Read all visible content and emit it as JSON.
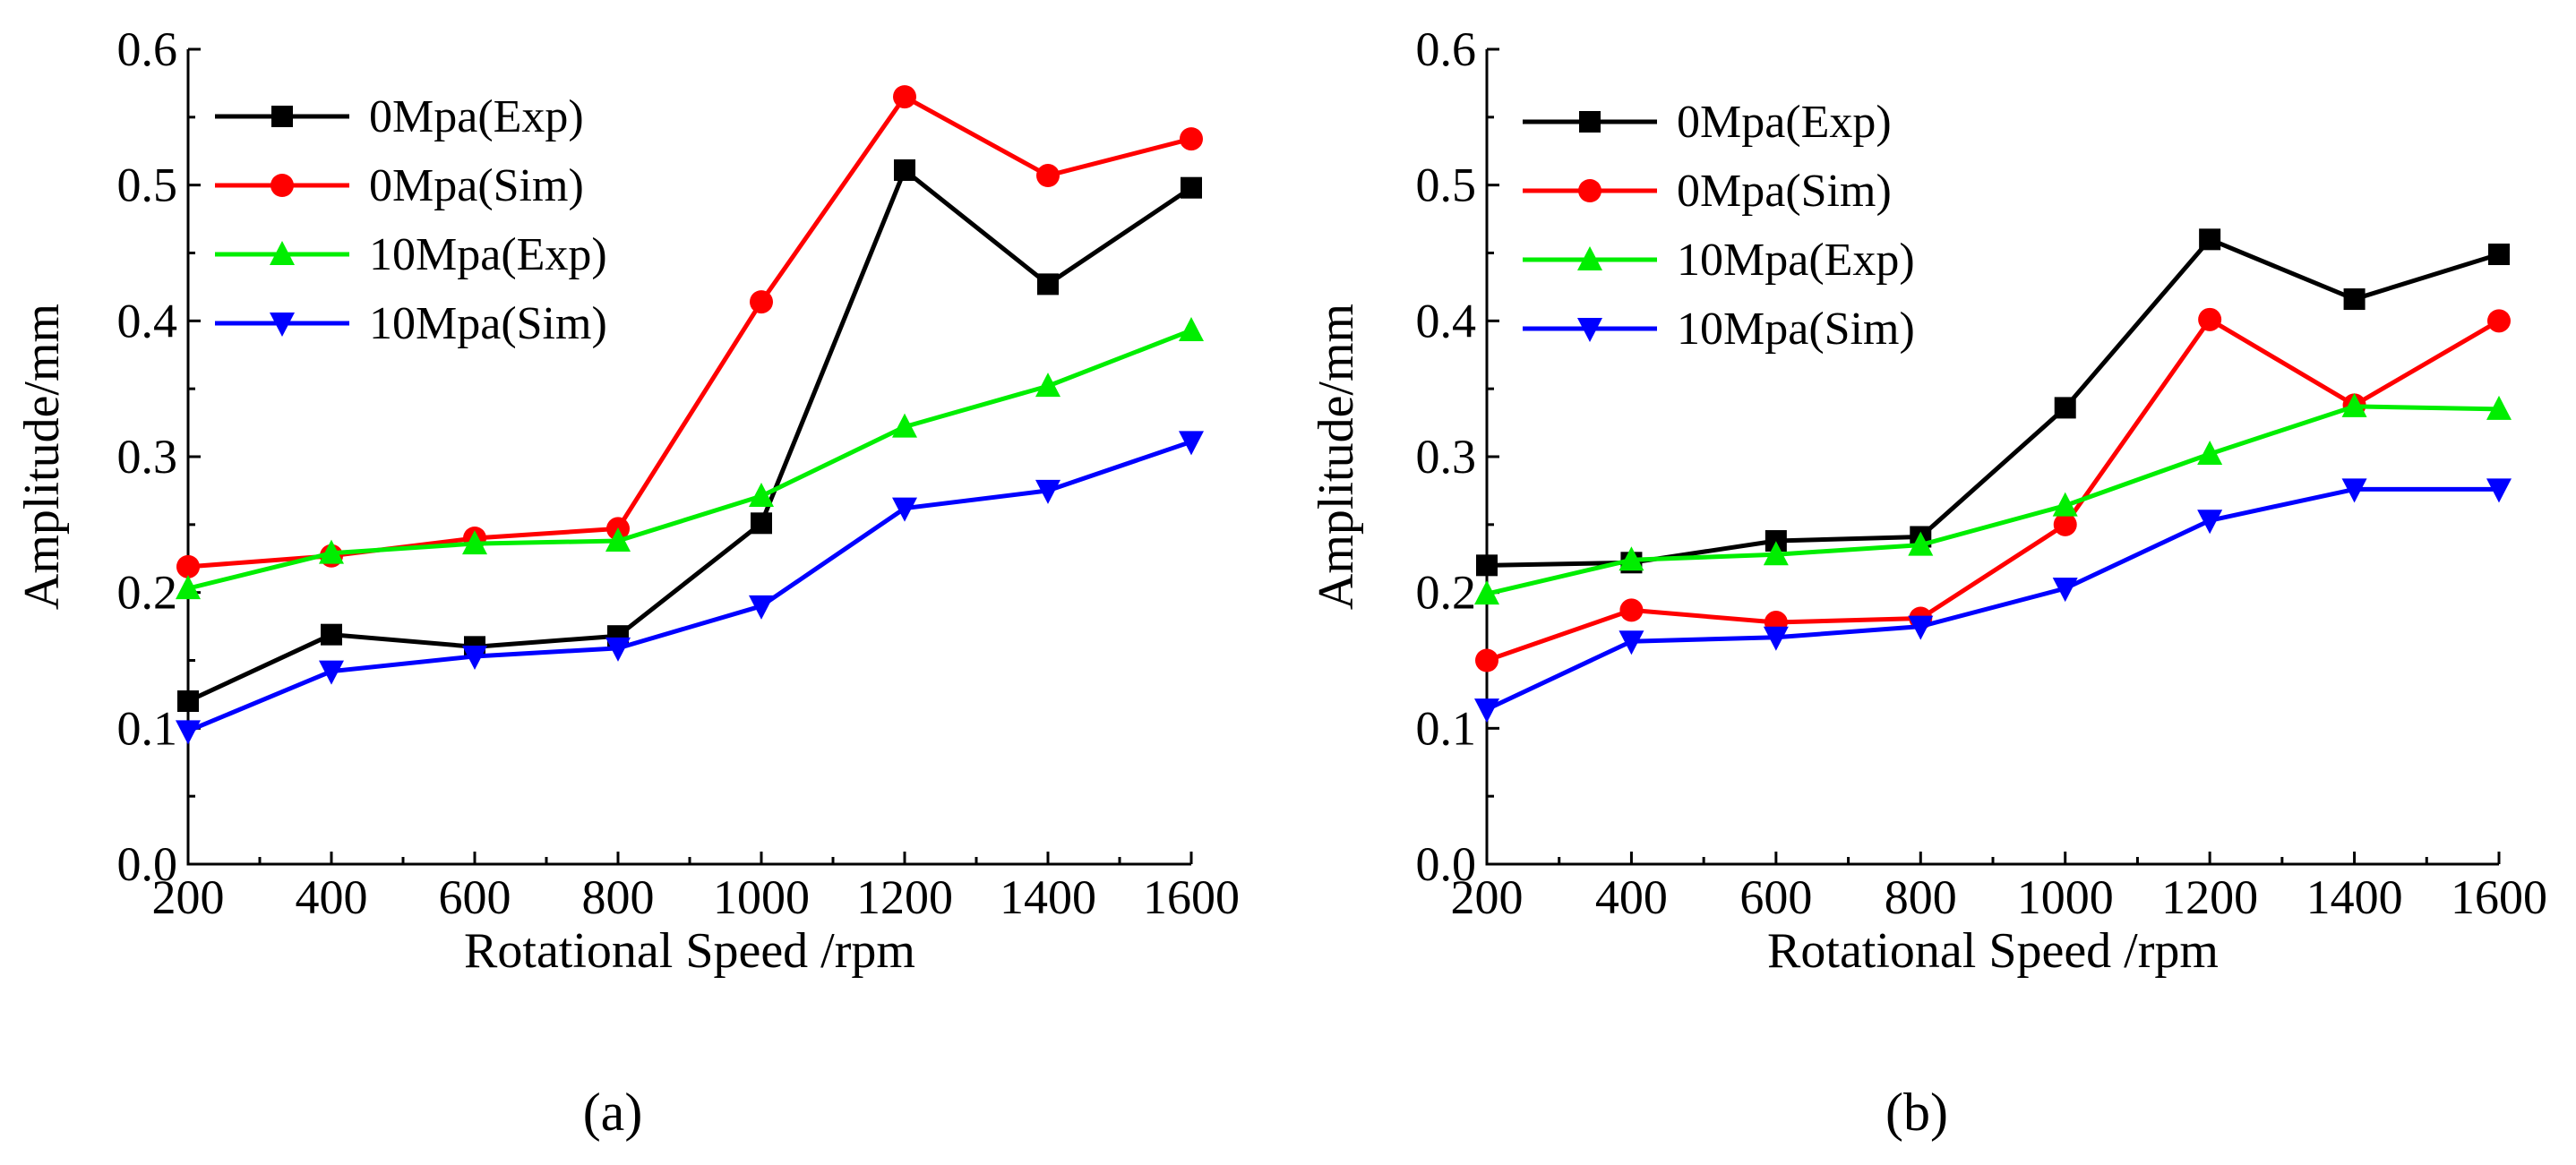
{
  "figure": {
    "panels": [
      {
        "panel_label_text": "(a)",
        "panel_letter": "a"
      },
      {
        "panel_label_text": "(b)",
        "panel_letter": "b"
      }
    ]
  },
  "chart_data": [
    {
      "type": "line",
      "panel": "(a)",
      "title": "",
      "xlabel": "Rotational Speed /rpm",
      "ylabel": "Amplitude/mm",
      "x": [
        200,
        400,
        600,
        800,
        1000,
        1200,
        1400,
        1600
      ],
      "xlim": [
        200,
        1600
      ],
      "ylim": [
        0.0,
        0.6
      ],
      "xticks": [
        "200",
        "400",
        "600",
        "800",
        "1000",
        "1200",
        "1400",
        "1600"
      ],
      "yticks": [
        "0.0",
        "0.1",
        "0.2",
        "0.3",
        "0.4",
        "0.5",
        "0.6"
      ],
      "legend_position": "top-left",
      "grid": false,
      "series": [
        {
          "name": "0Mpa(Exp)",
          "color": "#000000",
          "marker": "square",
          "values": [
            0.12,
            0.169,
            0.16,
            0.168,
            0.251,
            0.511,
            0.427,
            0.498
          ]
        },
        {
          "name": "0Mpa(Sim)",
          "color": "#ff0000",
          "marker": "circle",
          "values": [
            0.219,
            0.227,
            0.24,
            0.247,
            0.414,
            0.565,
            0.507,
            0.534
          ]
        },
        {
          "name": "10Mpa(Exp)",
          "color": "#00ee00",
          "marker": "triangle-up",
          "values": [
            0.203,
            0.229,
            0.236,
            0.238,
            0.271,
            0.322,
            0.352,
            0.393
          ]
        },
        {
          "name": "10Mpa(Sim)",
          "color": "#0000ff",
          "marker": "triangle-down",
          "values": [
            0.098,
            0.142,
            0.153,
            0.159,
            0.19,
            0.262,
            0.275,
            0.311
          ]
        }
      ]
    },
    {
      "type": "line",
      "panel": "(b)",
      "title": "",
      "xlabel": "Rotational Speed /rpm",
      "ylabel": "Amplitude/mm",
      "x": [
        200,
        400,
        600,
        800,
        1000,
        1200,
        1400,
        1600
      ],
      "xlim": [
        200,
        1600
      ],
      "ylim": [
        0.0,
        0.6
      ],
      "xticks": [
        "200",
        "400",
        "600",
        "800",
        "1000",
        "1200",
        "1400",
        "1600"
      ],
      "yticks": [
        "0.0",
        "0.1",
        "0.2",
        "0.3",
        "0.4",
        "0.5",
        "0.6"
      ],
      "legend_position": "top-left",
      "grid": false,
      "series": [
        {
          "name": "0Mpa(Exp)",
          "color": "#000000",
          "marker": "square",
          "values": [
            0.22,
            0.222,
            0.238,
            0.241,
            0.336,
            0.46,
            0.416,
            0.449
          ]
        },
        {
          "name": "0Mpa(Sim)",
          "color": "#ff0000",
          "marker": "circle",
          "values": [
            0.15,
            0.187,
            0.178,
            0.181,
            0.25,
            0.401,
            0.338,
            0.4
          ]
        },
        {
          "name": "10Mpa(Exp)",
          "color": "#00ee00",
          "marker": "triangle-up",
          "values": [
            0.199,
            0.224,
            0.228,
            0.235,
            0.264,
            0.302,
            0.337,
            0.335
          ]
        },
        {
          "name": "10Mpa(Sim)",
          "color": "#0000ff",
          "marker": "triangle-down",
          "values": [
            0.114,
            0.164,
            0.167,
            0.175,
            0.203,
            0.253,
            0.276,
            0.276
          ]
        }
      ]
    }
  ]
}
